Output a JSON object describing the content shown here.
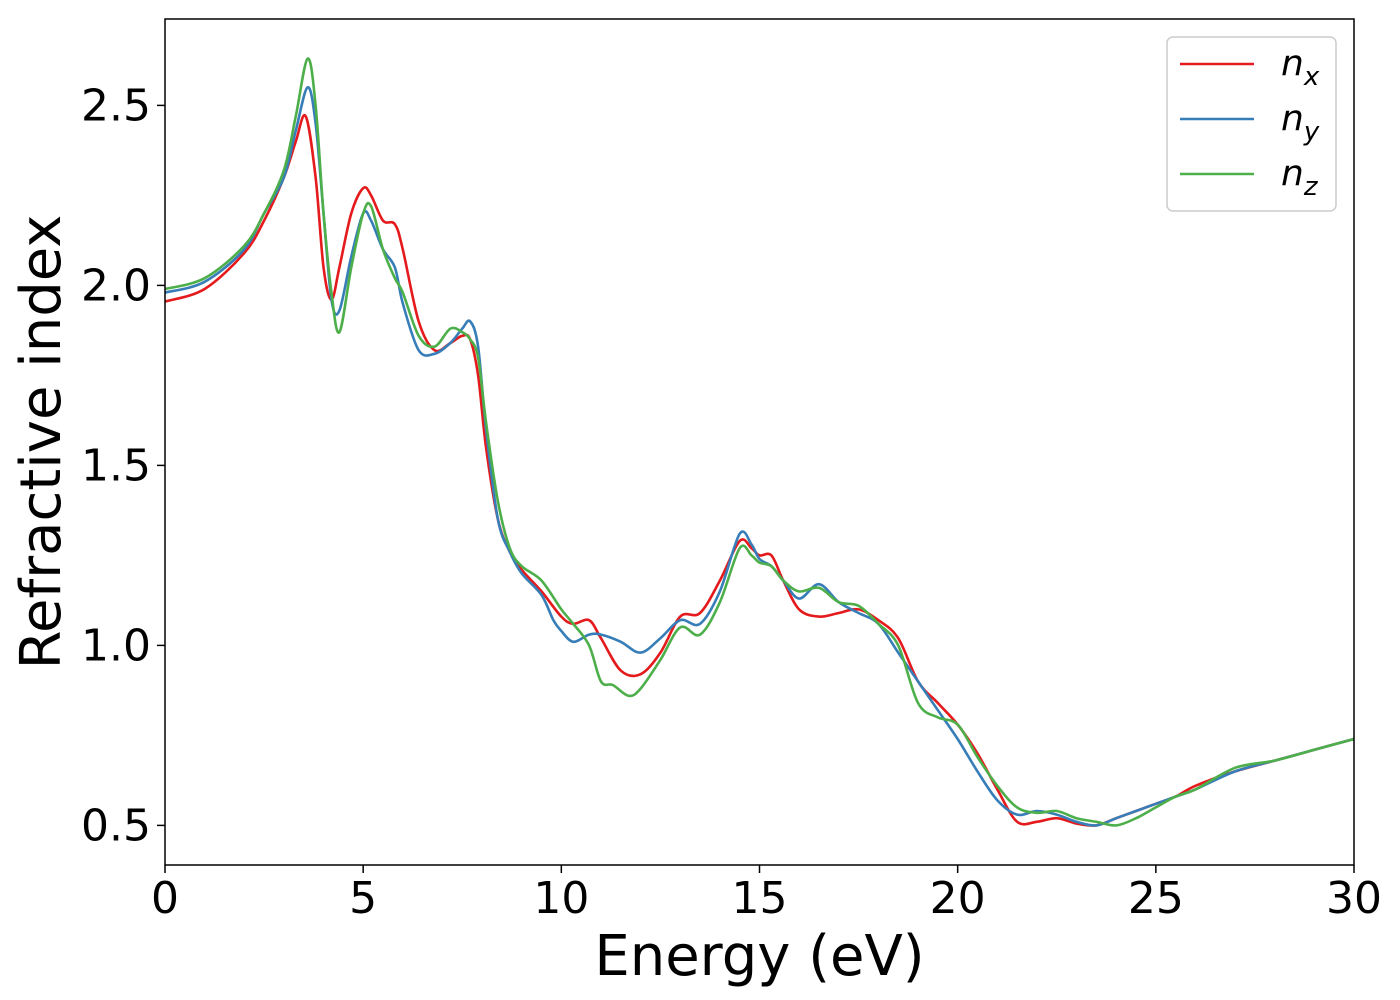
{
  "chart_data": {
    "type": "line",
    "xlabel": "Energy (eV)",
    "ylabel": "Refractive index",
    "xlim": [
      0,
      30
    ],
    "ylim": [
      0.39,
      2.74
    ],
    "xticks": [
      0,
      5,
      10,
      15,
      20,
      25,
      30
    ],
    "xtick_labels": [
      "0",
      "5",
      "10",
      "15",
      "20",
      "25",
      "30"
    ],
    "yticks": [
      0.5,
      1.0,
      1.5,
      2.0,
      2.5
    ],
    "ytick_labels": [
      "0.5",
      "1.0",
      "1.5",
      "2.0",
      "2.5"
    ],
    "grid": false,
    "legend_position": "top-right",
    "series": [
      {
        "name": "n",
        "subscript": "x",
        "color": "#e41a1c",
        "x": [
          0,
          1,
          2,
          2.5,
          3,
          3.3,
          3.55,
          3.8,
          4.0,
          4.2,
          4.4,
          4.7,
          5.0,
          5.2,
          5.5,
          5.8,
          6.0,
          6.4,
          6.8,
          7.2,
          7.5,
          7.7,
          7.9,
          8.1,
          8.4,
          8.7,
          9.0,
          9.5,
          10.0,
          10.3,
          10.7,
          11.0,
          11.5,
          12.0,
          12.5,
          13.0,
          13.5,
          14.0,
          14.5,
          14.8,
          15.0,
          15.3,
          15.6,
          16.0,
          16.5,
          17.0,
          17.5,
          18.0,
          18.5,
          19.0,
          19.5,
          20.0,
          20.5,
          21.0,
          21.5,
          22.0,
          22.5,
          23.0,
          23.5,
          24.0,
          24.5,
          25.0,
          25.5,
          26.0,
          27.0,
          28.0,
          29.0,
          30.0
        ],
        "y": [
          1.955,
          1.99,
          2.09,
          2.18,
          2.3,
          2.4,
          2.47,
          2.3,
          2.05,
          1.96,
          2.05,
          2.2,
          2.27,
          2.25,
          2.18,
          2.17,
          2.1,
          1.9,
          1.82,
          1.84,
          1.86,
          1.85,
          1.75,
          1.55,
          1.35,
          1.26,
          1.21,
          1.15,
          1.08,
          1.06,
          1.07,
          1.02,
          0.93,
          0.92,
          0.98,
          1.08,
          1.09,
          1.18,
          1.29,
          1.27,
          1.25,
          1.25,
          1.18,
          1.1,
          1.08,
          1.09,
          1.1,
          1.07,
          1.02,
          0.9,
          0.84,
          0.78,
          0.7,
          0.6,
          0.51,
          0.51,
          0.52,
          0.505,
          0.5,
          0.52,
          0.54,
          0.56,
          0.58,
          0.61,
          0.65,
          0.68,
          0.71,
          0.74
        ]
      },
      {
        "name": "n",
        "subscript": "y",
        "color": "#377eb8",
        "x": [
          0,
          1,
          2,
          2.5,
          3,
          3.3,
          3.6,
          3.8,
          4.0,
          4.2,
          4.4,
          4.7,
          5.0,
          5.2,
          5.5,
          5.8,
          6.0,
          6.4,
          6.8,
          7.2,
          7.5,
          7.7,
          7.9,
          8.1,
          8.4,
          8.7,
          9.0,
          9.5,
          9.8,
          10.0,
          10.3,
          10.7,
          11.0,
          11.5,
          12.0,
          12.5,
          13.0,
          13.5,
          14.0,
          14.5,
          14.8,
          15.0,
          15.3,
          15.6,
          16.0,
          16.5,
          17.0,
          17.5,
          18.0,
          18.5,
          19.0,
          19.5,
          20.0,
          20.5,
          21.0,
          21.5,
          22.0,
          22.5,
          23.0,
          23.5,
          24.0,
          24.5,
          25.0,
          25.5,
          26.0,
          27.0,
          28.0,
          29.0,
          30.0
        ],
        "y": [
          1.98,
          2.01,
          2.1,
          2.2,
          2.3,
          2.43,
          2.55,
          2.45,
          2.2,
          1.96,
          1.93,
          2.08,
          2.2,
          2.18,
          2.1,
          2.05,
          1.95,
          1.82,
          1.81,
          1.84,
          1.88,
          1.9,
          1.83,
          1.6,
          1.35,
          1.26,
          1.2,
          1.14,
          1.07,
          1.04,
          1.01,
          1.03,
          1.03,
          1.01,
          0.98,
          1.02,
          1.07,
          1.06,
          1.15,
          1.31,
          1.28,
          1.24,
          1.22,
          1.18,
          1.13,
          1.17,
          1.12,
          1.09,
          1.06,
          0.98,
          0.9,
          0.82,
          0.74,
          0.65,
          0.57,
          0.53,
          0.54,
          0.53,
          0.51,
          0.5,
          0.52,
          0.54,
          0.56,
          0.58,
          0.6,
          0.65,
          0.68,
          0.71,
          0.74
        ]
      },
      {
        "name": "n",
        "subscript": "z",
        "color": "#4daf4a",
        "x": [
          0,
          1,
          2,
          2.5,
          3,
          3.3,
          3.6,
          3.8,
          4.0,
          4.2,
          4.4,
          4.7,
          5.0,
          5.2,
          5.5,
          5.8,
          6.0,
          6.4,
          6.8,
          7.2,
          7.5,
          7.7,
          7.9,
          8.1,
          8.4,
          8.7,
          9.0,
          9.5,
          10.0,
          10.3,
          10.7,
          11.0,
          11.3,
          11.7,
          12.0,
          12.5,
          13.0,
          13.5,
          14.0,
          14.5,
          14.8,
          15.0,
          15.3,
          15.6,
          16.0,
          16.5,
          17.0,
          17.5,
          18.0,
          18.5,
          19.0,
          19.5,
          20.0,
          20.5,
          21.0,
          21.5,
          22.0,
          22.5,
          23.0,
          23.5,
          24.0,
          24.5,
          25.0,
          25.5,
          26.0,
          27.0,
          28.0,
          29.0,
          30.0
        ],
        "y": [
          1.99,
          2.02,
          2.11,
          2.2,
          2.32,
          2.47,
          2.63,
          2.5,
          2.2,
          1.98,
          1.87,
          2.05,
          2.2,
          2.22,
          2.1,
          2.02,
          1.98,
          1.86,
          1.83,
          1.88,
          1.87,
          1.85,
          1.8,
          1.62,
          1.4,
          1.27,
          1.22,
          1.18,
          1.1,
          1.06,
          1.0,
          0.9,
          0.89,
          0.86,
          0.88,
          0.96,
          1.05,
          1.03,
          1.12,
          1.27,
          1.25,
          1.23,
          1.22,
          1.18,
          1.15,
          1.16,
          1.12,
          1.11,
          1.06,
          1.0,
          0.84,
          0.8,
          0.78,
          0.69,
          0.61,
          0.55,
          0.535,
          0.54,
          0.52,
          0.51,
          0.5,
          0.52,
          0.55,
          0.58,
          0.6,
          0.66,
          0.68,
          0.71,
          0.74
        ]
      }
    ]
  }
}
